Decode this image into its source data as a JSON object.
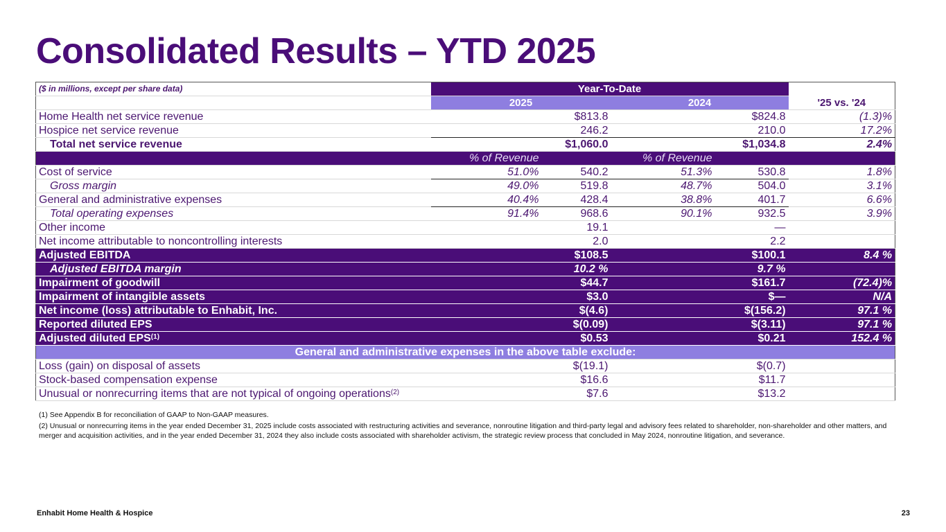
{
  "slide": {
    "title": "Consolidated Results – YTD 2025",
    "footer_left": "Enhabit Home Health & Hospice",
    "page_number": "23"
  },
  "table": {
    "caption": "($ in millions, except per share data)",
    "group_header": "Year-To-Date",
    "col_2025": "2025",
    "col_2024": "2024",
    "col_change": "'25 vs. '24",
    "rows": [
      {
        "label": "Home Health net service revenue",
        "v25": "$813.8",
        "v24": "$824.8",
        "chg": "(1.3)%"
      },
      {
        "label": "Hospice net service revenue",
        "v25": "246.2",
        "v24": "210.0",
        "chg": "17.2%"
      },
      {
        "label": "Total net service revenue",
        "v25": "$1,060.0",
        "v24": "$1,034.8",
        "chg": "2.4%"
      }
    ],
    "pct_header_25": "% of Revenue",
    "pct_header_24": "% of Revenue",
    "op_rows": [
      {
        "label": "Cost of service",
        "p25": "51.0%",
        "v25": "540.2",
        "p24": "51.3%",
        "v24": "530.8",
        "chg": "1.8%"
      },
      {
        "label": "Gross margin",
        "p25": "49.0%",
        "v25": "519.8",
        "p24": "48.7%",
        "v24": "504.0",
        "chg": "3.1%"
      },
      {
        "label": "General and administrative expenses",
        "p25": "40.4%",
        "v25": "428.4",
        "p24": "38.8%",
        "v24": "401.7",
        "chg": "6.6%"
      },
      {
        "label": "Total operating expenses",
        "p25": "91.4%",
        "v25": "968.6",
        "p24": "90.1%",
        "v24": "932.5",
        "chg": "3.9%"
      },
      {
        "label": "Other income",
        "v25": "19.1",
        "v24": "—"
      },
      {
        "label": "Net income attributable to noncontrolling interests",
        "v25": "2.0",
        "v24": "2.2"
      }
    ],
    "dark_rows": [
      {
        "label": "Adjusted EBITDA",
        "v25": "$108.5",
        "v24": "$100.1",
        "chg": "8.4 %"
      },
      {
        "label": "Adjusted EBITDA margin",
        "v25": "10.2 %",
        "v24": "9.7 %",
        "chg": ""
      },
      {
        "label": "Impairment of goodwill",
        "v25": "$44.7",
        "v24": "$161.7",
        "chg": "(72.4)%"
      },
      {
        "label": "Impairment of intangible assets",
        "v25": "$3.0",
        "v24": "$—",
        "chg": "N/A"
      },
      {
        "label": "Net income (loss) attributable to Enhabit, Inc.",
        "v25": "$(4.6)",
        "v24": "$(156.2)",
        "chg": "97.1 %"
      },
      {
        "label": "Reported diluted EPS",
        "v25": "$(0.09)",
        "v24": "$(3.11)",
        "chg": "97.1 %"
      },
      {
        "label": "Adjusted diluted EPS",
        "sup": "(1)",
        "v25": "$0.53",
        "v24": "$0.21",
        "chg": "152.4 %"
      }
    ],
    "exclude_header": "General and administrative expenses in the above table exclude:",
    "exclude_rows": [
      {
        "label": "Loss (gain) on disposal of assets",
        "v25": "$(19.1)",
        "v24": "$(0.7)"
      },
      {
        "label": "Stock-based compensation expense",
        "v25": "$16.6",
        "v24": "$11.7"
      },
      {
        "label": "Unusual or nonrecurring items that are not typical of ongoing operations",
        "sup": "(2)",
        "v25": "$7.6",
        "v24": "$13.2"
      }
    ]
  },
  "notes": {
    "note1": "(1) See Appendix B for reconciliation of GAAP to Non-GAAP measures.",
    "note2": "(2) Unusual or nonrecurring items in the year ended December 31, 2025 include costs associated with restructuring activities and severance, nonroutine litigation and third-party legal and advisory fees related to shareholder, non-shareholder and other matters, and merger and acquisition activities, and in the year ended December 31, 2024 they also include costs associated with shareholder activism, the strategic review process that concluded in May 2024, nonroutine litigation, and severance."
  },
  "colors": {
    "brand_purple": "#4a0d78",
    "band_lavender": "#8e7ee0"
  }
}
